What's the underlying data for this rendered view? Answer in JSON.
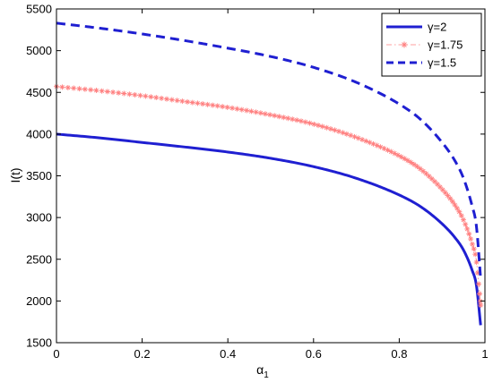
{
  "chart_data": {
    "type": "line",
    "title": "",
    "xlabel": "α",
    "xlabel_sub": "1",
    "ylabel": "I(t)",
    "xlim": [
      0,
      1
    ],
    "ylim": [
      1500,
      5500
    ],
    "xticks": [
      0,
      0.2,
      0.4,
      0.6,
      0.8,
      1
    ],
    "xtick_labels": [
      "0",
      "0.2",
      "0.4",
      "0.6",
      "0.8",
      "1"
    ],
    "yticks": [
      1500,
      2000,
      2500,
      3000,
      3500,
      4000,
      4500,
      5000,
      5500
    ],
    "ytick_labels": [
      "1500",
      "2000",
      "2500",
      "3000",
      "3500",
      "4000",
      "4500",
      "5000",
      "5500"
    ],
    "grid": false,
    "legend_position": "top-right",
    "series": [
      {
        "name": "γ=2",
        "color": "#1f1fd1",
        "style": "solid",
        "x": [
          0,
          0.1,
          0.2,
          0.3,
          0.4,
          0.5,
          0.6,
          0.7,
          0.8,
          0.85,
          0.9,
          0.93,
          0.95,
          0.97,
          0.98,
          0.99
        ],
        "y": [
          4000,
          3955,
          3900,
          3845,
          3785,
          3710,
          3610,
          3470,
          3270,
          3130,
          2925,
          2760,
          2610,
          2370,
          2190,
          1710
        ]
      },
      {
        "name": "γ=1.75",
        "color": "#ff8080",
        "style": "dash-dot-star",
        "x": [
          0,
          0.1,
          0.2,
          0.3,
          0.4,
          0.5,
          0.6,
          0.7,
          0.8,
          0.85,
          0.9,
          0.93,
          0.95,
          0.97,
          0.98,
          0.99
        ],
        "y": [
          4570,
          4520,
          4460,
          4390,
          4320,
          4230,
          4120,
          3960,
          3740,
          3580,
          3340,
          3150,
          2970,
          2690,
          2480,
          1950
        ]
      },
      {
        "name": "γ=1.5",
        "color": "#1f1fd1",
        "style": "dashed",
        "x": [
          0,
          0.1,
          0.2,
          0.3,
          0.4,
          0.5,
          0.6,
          0.7,
          0.8,
          0.85,
          0.9,
          0.93,
          0.95,
          0.97,
          0.98,
          0.99
        ],
        "y": [
          5330,
          5270,
          5200,
          5120,
          5030,
          4930,
          4800,
          4620,
          4360,
          4175,
          3900,
          3680,
          3470,
          3140,
          2900,
          2270
        ]
      }
    ]
  }
}
